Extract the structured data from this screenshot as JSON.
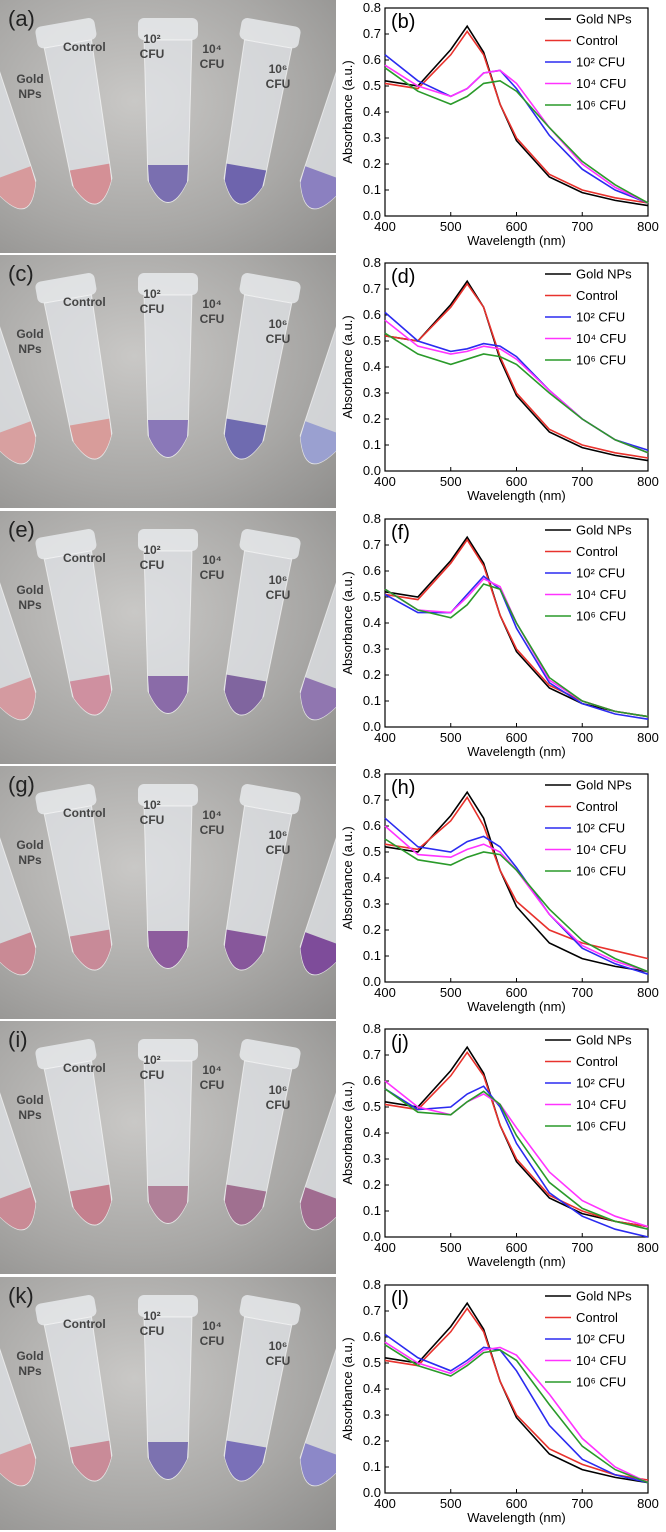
{
  "photos": [
    {
      "label": "(a)",
      "tubes": [
        "Gold NPs",
        "Control",
        "10² CFU",
        "10⁴ CFU",
        "10⁶ CFU"
      ]
    },
    {
      "label": "(c)",
      "tubes": [
        "Gold NPs",
        "Control",
        "10² CFU",
        "10⁴ CFU",
        "10⁶ CFU"
      ]
    },
    {
      "label": "(e)",
      "tubes": [
        "Gold NPs",
        "Control",
        "10² CFU",
        "10⁴ CFU",
        "10⁶ CFU"
      ]
    },
    {
      "label": "(g)",
      "tubes": [
        "Gold NPs",
        "Control",
        "10² CFU",
        "10⁴ CFU",
        "10⁶ CFU"
      ]
    },
    {
      "label": "(i)",
      "tubes": [
        "Gold NPs",
        "Control",
        "10² CFU",
        "10⁴ CFU",
        "10⁶ CFU"
      ]
    },
    {
      "label": "(k)",
      "tubes": [
        "Gold NPs",
        "Control",
        "10² CFU",
        "10⁴ CFU",
        "10⁶ CFU"
      ]
    }
  ],
  "chart_data": [
    {
      "type": "line",
      "panel": "(b)",
      "xlabel": "Wavelength (nm)",
      "ylabel": "Absorbance (a.u.)",
      "legend": "upper right",
      "x": [
        400,
        450,
        500,
        525,
        550,
        575,
        600,
        650,
        700,
        750,
        800
      ],
      "xlim": [
        400,
        800
      ],
      "ylim": [
        0,
        0.8
      ],
      "xticks": [
        400,
        500,
        600,
        700,
        800
      ],
      "yticks": [
        {
          "value": 0,
          "label": "0.0"
        },
        0.1,
        0.2,
        0.3,
        0.4,
        0.5,
        0.6,
        0.7,
        0.8
      ],
      "series": [
        {
          "name": "Gold NPs",
          "color": "#000000",
          "values": [
            0.52,
            0.5,
            0.64,
            0.73,
            0.63,
            0.43,
            0.29,
            0.15,
            0.09,
            0.06,
            0.04
          ]
        },
        {
          "name": "Control",
          "color": "#e8322d",
          "values": [
            0.51,
            0.49,
            0.62,
            0.71,
            0.62,
            0.43,
            0.3,
            0.16,
            0.1,
            0.07,
            0.05
          ]
        },
        {
          "name": "10² CFU",
          "color": "#2b2bf0",
          "values": [
            0.62,
            0.52,
            0.46,
            0.49,
            0.55,
            0.56,
            0.49,
            0.31,
            0.18,
            0.1,
            0.05
          ]
        },
        {
          "name": "10⁴ CFU",
          "color": "#ff33ff",
          "values": [
            0.58,
            0.5,
            0.46,
            0.49,
            0.55,
            0.56,
            0.51,
            0.34,
            0.2,
            0.11,
            0.05
          ]
        },
        {
          "name": "10⁶ CFU",
          "color": "#2a9a2a",
          "values": [
            0.57,
            0.48,
            0.43,
            0.46,
            0.51,
            0.52,
            0.48,
            0.34,
            0.21,
            0.12,
            0.05
          ]
        }
      ]
    },
    {
      "type": "line",
      "panel": "(d)",
      "xlabel": "Wavelength (nm)",
      "ylabel": "Absorbance (a.u.)",
      "legend": "upper right",
      "x": [
        400,
        450,
        500,
        525,
        550,
        575,
        600,
        650,
        700,
        750,
        800
      ],
      "xlim": [
        400,
        800
      ],
      "ylim": [
        0,
        0.8
      ],
      "xticks": [
        400,
        500,
        600,
        700,
        800
      ],
      "yticks": [
        {
          "value": 0,
          "label": "0.0"
        },
        0.1,
        0.2,
        0.3,
        0.4,
        0.5,
        0.6,
        0.7,
        0.8
      ],
      "series": [
        {
          "name": "Gold NPs",
          "color": "#000000",
          "values": [
            0.52,
            0.5,
            0.64,
            0.73,
            0.63,
            0.43,
            0.29,
            0.15,
            0.09,
            0.06,
            0.04
          ]
        },
        {
          "name": "Control",
          "color": "#e8322d",
          "values": [
            0.52,
            0.5,
            0.63,
            0.72,
            0.63,
            0.44,
            0.3,
            0.16,
            0.1,
            0.07,
            0.05
          ]
        },
        {
          "name": "10² CFU",
          "color": "#2b2bf0",
          "values": [
            0.61,
            0.5,
            0.46,
            0.47,
            0.49,
            0.48,
            0.44,
            0.31,
            0.2,
            0.12,
            0.08
          ]
        },
        {
          "name": "10⁴ CFU",
          "color": "#ff33ff",
          "values": [
            0.58,
            0.48,
            0.45,
            0.46,
            0.48,
            0.47,
            0.43,
            0.31,
            0.2,
            0.12,
            0.07
          ]
        },
        {
          "name": "10⁶ CFU",
          "color": "#2a9a2a",
          "values": [
            0.53,
            0.45,
            0.41,
            0.43,
            0.45,
            0.44,
            0.41,
            0.3,
            0.2,
            0.12,
            0.07
          ]
        }
      ]
    },
    {
      "type": "line",
      "panel": "(f)",
      "xlabel": "Wavelength (nm)",
      "ylabel": "Absorbance (a.u.)",
      "legend": "upper right",
      "x": [
        400,
        450,
        500,
        525,
        550,
        575,
        600,
        650,
        700,
        750,
        800
      ],
      "xlim": [
        400,
        800
      ],
      "ylim": [
        0,
        0.8
      ],
      "xticks": [
        400,
        500,
        600,
        700,
        800
      ],
      "yticks": [
        {
          "value": 0,
          "label": "0.0"
        },
        0.1,
        0.2,
        0.3,
        0.4,
        0.5,
        0.6,
        0.7,
        0.8
      ],
      "series": [
        {
          "name": "Gold NPs",
          "color": "#000000",
          "values": [
            0.52,
            0.5,
            0.64,
            0.73,
            0.63,
            0.43,
            0.29,
            0.15,
            0.09,
            0.06,
            0.04
          ]
        },
        {
          "name": "Control",
          "color": "#e8322d",
          "values": [
            0.51,
            0.49,
            0.63,
            0.72,
            0.62,
            0.43,
            0.3,
            0.16,
            0.1,
            0.06,
            0.04
          ]
        },
        {
          "name": "10² CFU",
          "color": "#2b2bf0",
          "values": [
            0.51,
            0.44,
            0.44,
            0.51,
            0.58,
            0.53,
            0.38,
            0.17,
            0.09,
            0.05,
            0.03
          ]
        },
        {
          "name": "10⁴ CFU",
          "color": "#ff33ff",
          "values": [
            0.53,
            0.45,
            0.44,
            0.5,
            0.57,
            0.54,
            0.4,
            0.18,
            0.1,
            0.06,
            0.04
          ]
        },
        {
          "name": "10⁶ CFU",
          "color": "#2a9a2a",
          "values": [
            0.53,
            0.45,
            0.42,
            0.47,
            0.55,
            0.53,
            0.4,
            0.19,
            0.1,
            0.06,
            0.04
          ]
        }
      ]
    },
    {
      "type": "line",
      "panel": "(h)",
      "xlabel": "Wavelength (nm)",
      "ylabel": "Absorbance (a.u.)",
      "legend": "upper right",
      "x": [
        400,
        450,
        500,
        525,
        550,
        575,
        600,
        650,
        700,
        750,
        800
      ],
      "xlim": [
        400,
        800
      ],
      "ylim": [
        0,
        0.8
      ],
      "xticks": [
        400,
        500,
        600,
        700,
        800
      ],
      "yticks": [
        {
          "value": 0,
          "label": "0.0"
        },
        0.1,
        0.2,
        0.3,
        0.4,
        0.5,
        0.6,
        0.7,
        0.8
      ],
      "series": [
        {
          "name": "Gold NPs",
          "color": "#000000",
          "values": [
            0.52,
            0.5,
            0.64,
            0.73,
            0.63,
            0.43,
            0.29,
            0.15,
            0.09,
            0.06,
            0.04
          ]
        },
        {
          "name": "Control",
          "color": "#e8322d",
          "values": [
            0.53,
            0.51,
            0.62,
            0.71,
            0.6,
            0.43,
            0.31,
            0.2,
            0.15,
            0.12,
            0.09
          ]
        },
        {
          "name": "10² CFU",
          "color": "#2b2bf0",
          "values": [
            0.63,
            0.52,
            0.5,
            0.54,
            0.56,
            0.52,
            0.44,
            0.26,
            0.13,
            0.07,
            0.03
          ]
        },
        {
          "name": "10⁴ CFU",
          "color": "#ff33ff",
          "values": [
            0.6,
            0.49,
            0.48,
            0.51,
            0.53,
            0.5,
            0.43,
            0.26,
            0.14,
            0.08,
            0.04
          ]
        },
        {
          "name": "10⁶ CFU",
          "color": "#2a9a2a",
          "values": [
            0.55,
            0.47,
            0.45,
            0.48,
            0.5,
            0.49,
            0.43,
            0.28,
            0.16,
            0.09,
            0.04
          ]
        }
      ]
    },
    {
      "type": "line",
      "panel": "(j)",
      "xlabel": "Wavelength (nm)",
      "ylabel": "Absorbance (a.u.)",
      "legend": "upper right",
      "x": [
        400,
        450,
        500,
        525,
        550,
        575,
        600,
        650,
        700,
        750,
        800
      ],
      "xlim": [
        400,
        800
      ],
      "ylim": [
        0,
        0.8
      ],
      "xticks": [
        400,
        500,
        600,
        700,
        800
      ],
      "yticks": [
        {
          "value": 0,
          "label": "0.0"
        },
        0.1,
        0.2,
        0.3,
        0.4,
        0.5,
        0.6,
        0.7,
        0.8
      ],
      "series": [
        {
          "name": "Gold NPs",
          "color": "#000000",
          "values": [
            0.52,
            0.5,
            0.64,
            0.73,
            0.63,
            0.43,
            0.29,
            0.15,
            0.09,
            0.06,
            0.04
          ]
        },
        {
          "name": "Control",
          "color": "#e8322d",
          "values": [
            0.51,
            0.49,
            0.62,
            0.71,
            0.62,
            0.43,
            0.3,
            0.16,
            0.1,
            0.06,
            0.04
          ]
        },
        {
          "name": "10² CFU",
          "color": "#2b2bf0",
          "values": [
            0.57,
            0.49,
            0.5,
            0.55,
            0.58,
            0.5,
            0.36,
            0.17,
            0.08,
            0.03,
            0
          ]
        },
        {
          "name": "10⁴ CFU",
          "color": "#ff33ff",
          "values": [
            0.6,
            0.5,
            0.47,
            0.52,
            0.55,
            0.51,
            0.42,
            0.25,
            0.14,
            0.08,
            0.04
          ]
        },
        {
          "name": "10⁶ CFU",
          "color": "#2a9a2a",
          "values": [
            0.57,
            0.48,
            0.47,
            0.52,
            0.56,
            0.51,
            0.39,
            0.21,
            0.11,
            0.06,
            0.03
          ]
        }
      ]
    },
    {
      "type": "line",
      "panel": "(l)",
      "xlabel": "Wavelength (nm)",
      "ylabel": "Absorbance (a.u.)",
      "legend": "upper right",
      "x": [
        400,
        450,
        500,
        525,
        550,
        575,
        600,
        650,
        700,
        750,
        800
      ],
      "xlim": [
        400,
        800
      ],
      "ylim": [
        0,
        0.8
      ],
      "xticks": [
        400,
        500,
        600,
        700,
        800
      ],
      "yticks": [
        {
          "value": 0,
          "label": "0.0"
        },
        0.1,
        0.2,
        0.3,
        0.4,
        0.5,
        0.6,
        0.7,
        0.8
      ],
      "series": [
        {
          "name": "Gold NPs",
          "color": "#000000",
          "values": [
            0.52,
            0.5,
            0.64,
            0.73,
            0.63,
            0.43,
            0.29,
            0.15,
            0.09,
            0.06,
            0.04
          ]
        },
        {
          "name": "Control",
          "color": "#e8322d",
          "values": [
            0.51,
            0.49,
            0.62,
            0.71,
            0.62,
            0.43,
            0.3,
            0.17,
            0.11,
            0.07,
            0.05
          ]
        },
        {
          "name": "10² CFU",
          "color": "#2b2bf0",
          "values": [
            0.61,
            0.52,
            0.47,
            0.51,
            0.56,
            0.55,
            0.47,
            0.26,
            0.13,
            0.07,
            0.04
          ]
        },
        {
          "name": "10⁴ CFU",
          "color": "#ff33ff",
          "values": [
            0.58,
            0.5,
            0.46,
            0.5,
            0.55,
            0.56,
            0.53,
            0.38,
            0.21,
            0.1,
            0.04
          ]
        },
        {
          "name": "10⁶ CFU",
          "color": "#2a9a2a",
          "values": [
            0.57,
            0.49,
            0.45,
            0.49,
            0.54,
            0.55,
            0.51,
            0.34,
            0.18,
            0.09,
            0.04
          ]
        }
      ]
    }
  ]
}
